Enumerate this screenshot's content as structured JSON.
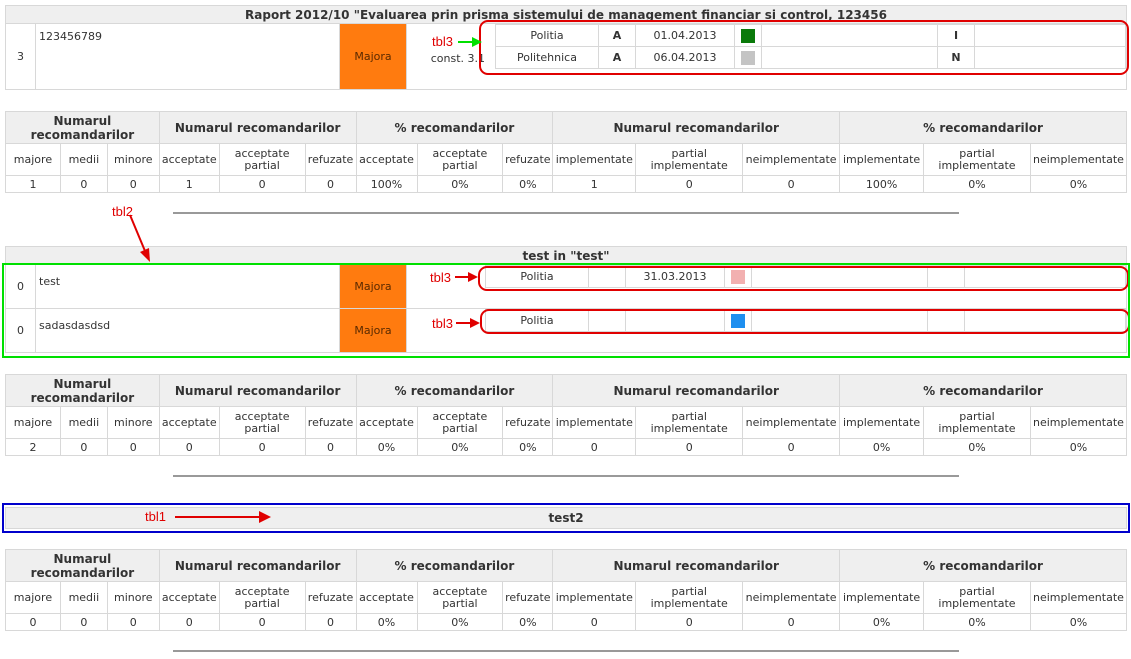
{
  "colors": {
    "red": "#e00000",
    "green": "#00e000",
    "blue": "#0000cc",
    "severity": "#ff7b0f"
  },
  "report1": {
    "title": "Raport 2012/10 \"Evaluarea prin prisma sistemului de management financiar și control, 123456",
    "row": {
      "num": "3",
      "name": "123456789",
      "severity": "Majora",
      "const": "const. 3.1"
    },
    "entities": [
      {
        "name": "Politia",
        "grade": "A",
        "date": "01.04.2013",
        "color": "#0a7a0a",
        "status": "I"
      },
      {
        "name": "Politehnica",
        "grade": "A",
        "date": "06.04.2013",
        "color": "#c4c4c4",
        "status": "N"
      }
    ]
  },
  "report2": {
    "title": "test in \"test\"",
    "rows": [
      {
        "num": "0",
        "name": "test",
        "severity": "Majora",
        "entity": "Politia",
        "date": "31.03.2013",
        "color": "#f2b0b0"
      },
      {
        "num": "0",
        "name": "sadasdasdsd",
        "severity": "Majora",
        "entity": "Politia",
        "date": "",
        "color": "#1e8fef"
      }
    ]
  },
  "report3": {
    "title": "test2"
  },
  "stats_headers": {
    "groups": [
      "Numarul recomandarilor",
      "Numarul recomandarilor",
      "% recomandarilor",
      "Numarul recomandarilor",
      "% recomandarilor"
    ],
    "sub": [
      "majore",
      "medii",
      "minore",
      "acceptate",
      "acceptate partial",
      "refuzate",
      "acceptate",
      "acceptate partial",
      "refuzate",
      "implementate",
      "partial implementate",
      "neimplementate",
      "implementate",
      "partial implementate",
      "neimplementate"
    ]
  },
  "stats": [
    [
      "1",
      "0",
      "0",
      "1",
      "0",
      "0",
      "100%",
      "0%",
      "0%",
      "1",
      "0",
      "0",
      "100%",
      "0%",
      "0%"
    ],
    [
      "2",
      "0",
      "0",
      "0",
      "0",
      "0",
      "0%",
      "0%",
      "0%",
      "0",
      "0",
      "0",
      "0%",
      "0%",
      "0%"
    ],
    [
      "0",
      "0",
      "0",
      "0",
      "0",
      "0",
      "0%",
      "0%",
      "0%",
      "0",
      "0",
      "0",
      "0%",
      "0%",
      "0%"
    ]
  ],
  "annotations": {
    "tbl3": "tbl3",
    "tbl2": "tbl2",
    "tbl1": "tbl1"
  }
}
